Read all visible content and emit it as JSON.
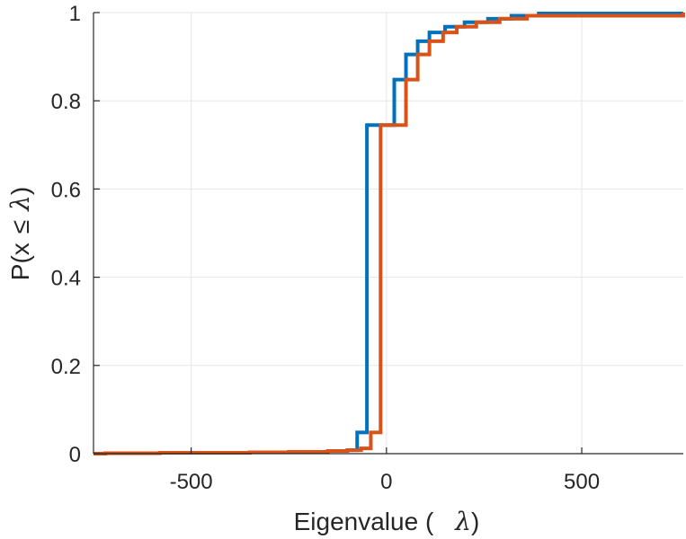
{
  "chart_data": {
    "type": "line",
    "subtype": "empirical CDF (stairs)",
    "title": "",
    "xlabel_text": "Eigenvalue (",
    "xlabel_symbol": "λ",
    "xlabel_close": ")",
    "ylabel_text": "P(x",
    "ylabel_leq": "≤",
    "ylabel_symbol": "λ",
    "ylabel_close": ")",
    "xlim": [
      -750,
      760
    ],
    "ylim": [
      0,
      1
    ],
    "xticks": [
      -500,
      0,
      500
    ],
    "xtick_labels": [
      "-500",
      "0",
      "500"
    ],
    "yticks": [
      0,
      0.2,
      0.4,
      0.6,
      0.8,
      1
    ],
    "ytick_labels": [
      "0",
      "0.2",
      "0.4",
      "0.6",
      "0.8",
      "1"
    ],
    "grid": true,
    "series": [
      {
        "name": "series-1",
        "color": "#0072BD",
        "x": [
          -750,
          -720,
          -580,
          -350,
          -250,
          -150,
          -100,
          -75,
          -50,
          20,
          50,
          80,
          110,
          150,
          200,
          260,
          320,
          390,
          760
        ],
        "y": [
          0,
          0.001,
          0.002,
          0.003,
          0.004,
          0.006,
          0.008,
          0.048,
          0.745,
          0.848,
          0.905,
          0.935,
          0.955,
          0.968,
          0.978,
          0.986,
          0.993,
          0.998,
          1.0
        ]
      },
      {
        "name": "series-2",
        "color": "#D95319",
        "x": [
          -750,
          -720,
          -580,
          -350,
          -250,
          -150,
          -100,
          -65,
          -40,
          -15,
          50,
          80,
          110,
          145,
          180,
          230,
          290,
          360,
          760
        ],
        "y": [
          0,
          0.001,
          0.002,
          0.003,
          0.004,
          0.006,
          0.008,
          0.012,
          0.048,
          0.745,
          0.848,
          0.905,
          0.935,
          0.955,
          0.968,
          0.978,
          0.986,
          0.993,
          1.0
        ]
      }
    ]
  }
}
